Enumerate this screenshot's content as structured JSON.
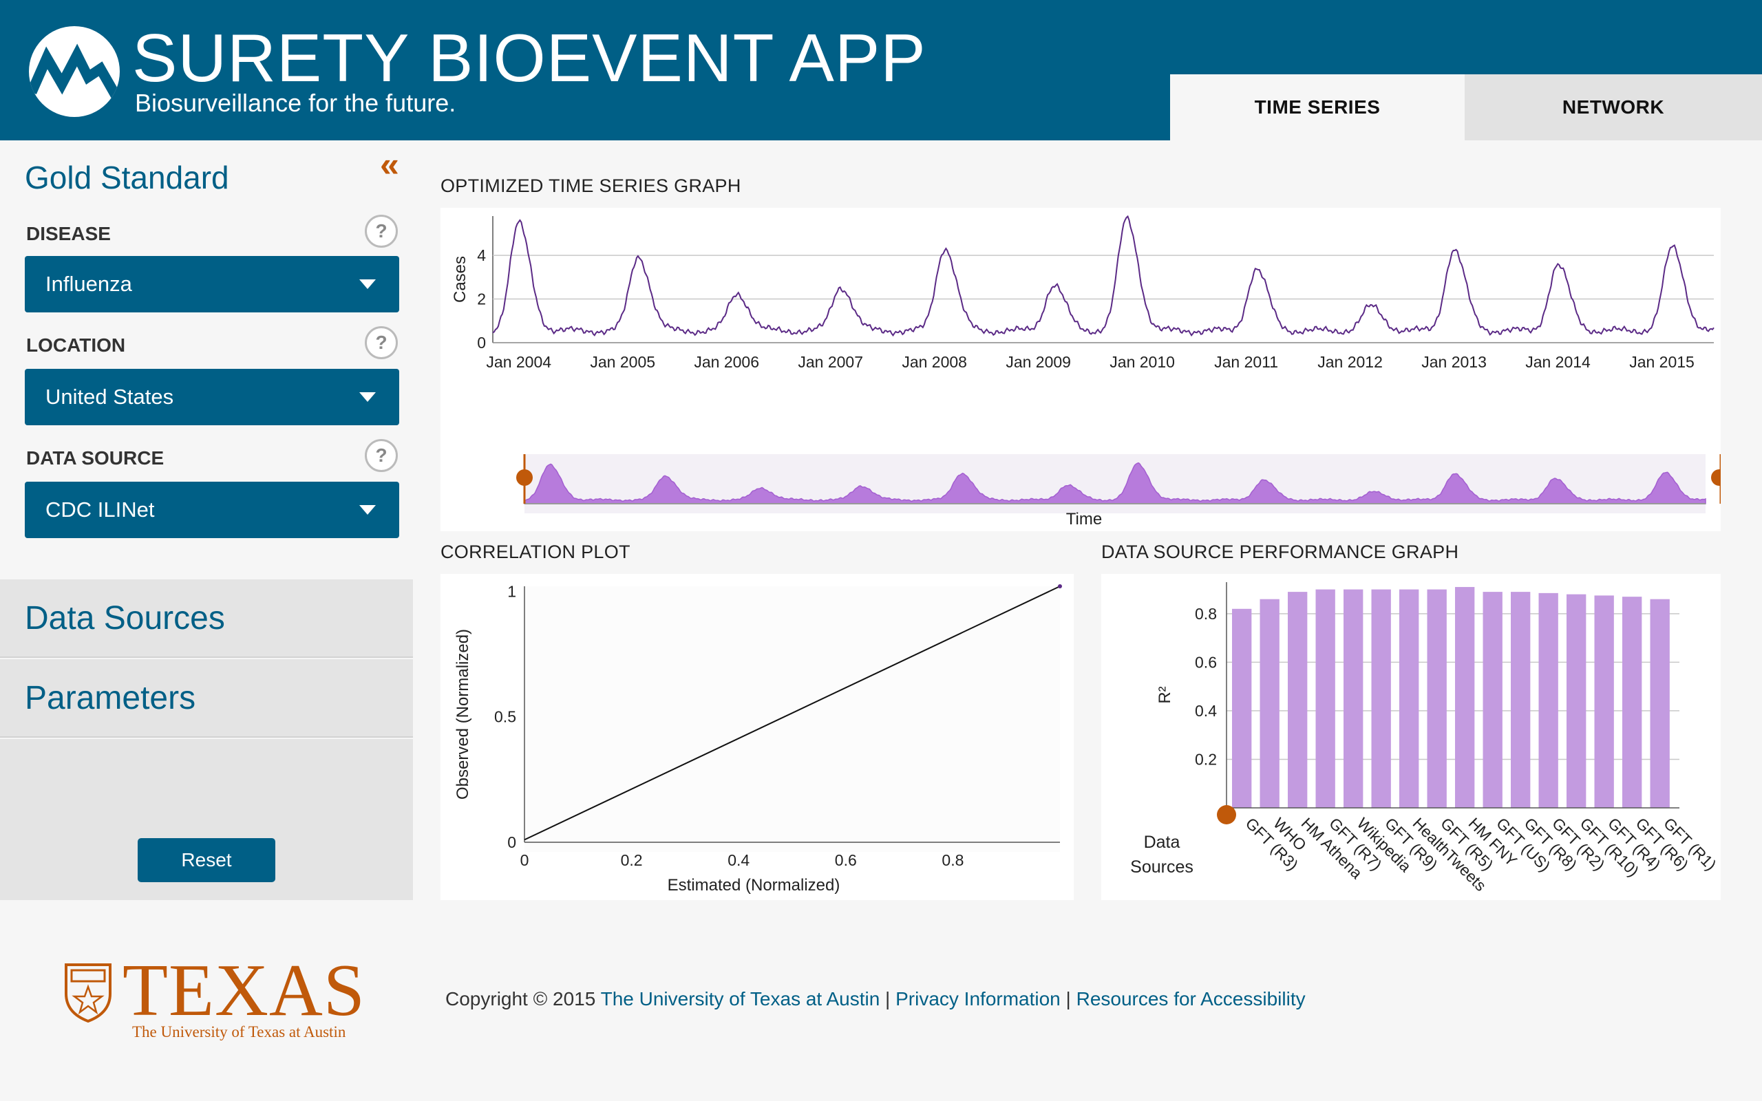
{
  "header": {
    "title": "SURETY BIOEVENT APP",
    "subtitle": "Biosurveillance for the future.",
    "tabs": [
      {
        "label": "TIME SERIES",
        "active": true
      },
      {
        "label": "NETWORK",
        "active": false
      }
    ]
  },
  "colors": {
    "brand": "#005f86",
    "accent": "#c0590a",
    "series": "#5b2a86",
    "area": "#b77bdc",
    "bar": "#c39be0"
  },
  "sidebar": {
    "collapse_icon": "double-chevron-left-icon",
    "section_title": "Gold Standard",
    "fields": [
      {
        "label": "DISEASE",
        "value": "Influenza",
        "help": "?"
      },
      {
        "label": "LOCATION",
        "value": "United States",
        "help": "?"
      },
      {
        "label": "DATA SOURCE",
        "value": "CDC ILINet",
        "help": "?"
      }
    ],
    "sections": [
      "Data Sources",
      "Parameters"
    ],
    "reset_label": "Reset"
  },
  "time_series": {
    "title": "OPTIMIZED TIME SERIES GRAPH",
    "chart_data": {
      "type": "line",
      "ylabel": "Cases",
      "xlabel": "Time",
      "yticks": [
        0,
        2,
        4
      ],
      "xticks": [
        "Jan 2004",
        "Jan 2005",
        "Jan 2006",
        "Jan 2007",
        "Jan 2008",
        "Jan 2009",
        "Jan 2010",
        "Jan 2011",
        "Jan 2012",
        "Jan 2013",
        "Jan 2014",
        "Jan 2015"
      ],
      "ylim": [
        0,
        5.8
      ],
      "x_range": [
        "2003-10",
        "2015-06"
      ],
      "grid": true,
      "brush": true,
      "peaks": [
        {
          "year": 2004.0,
          "value": 5.5
        },
        {
          "year": 2005.15,
          "value": 4.0
        },
        {
          "year": 2006.1,
          "value": 2.3
        },
        {
          "year": 2007.1,
          "value": 2.6
        },
        {
          "year": 2008.1,
          "value": 4.4
        },
        {
          "year": 2009.15,
          "value": 2.7
        },
        {
          "year": 2009.85,
          "value": 5.7
        },
        {
          "year": 2011.1,
          "value": 3.4
        },
        {
          "year": 2012.2,
          "value": 1.7
        },
        {
          "year": 2013.0,
          "value": 4.3
        },
        {
          "year": 2014.0,
          "value": 3.6
        },
        {
          "year": 2015.1,
          "value": 4.4
        }
      ]
    }
  },
  "correlation": {
    "title": "CORRELATION PLOT",
    "chart_data": {
      "type": "line",
      "xlabel": "Estimated (Normalized)",
      "ylabel": "Observed (Normalized)",
      "xticks": [
        0,
        0.2,
        0.4,
        0.6,
        0.8
      ],
      "yticks": [
        0,
        0.5,
        1
      ],
      "xlim": [
        0,
        1
      ],
      "ylim": [
        0,
        1.02
      ],
      "points": [
        [
          0,
          0.01
        ],
        [
          1,
          1.02
        ]
      ]
    }
  },
  "performance": {
    "title": "DATA SOURCE PERFORMANCE GRAPH",
    "chart_data": {
      "type": "bar",
      "ylabel": "R²",
      "xlabel": "Data Sources",
      "yticks": [
        0.2,
        0.4,
        0.6,
        0.8
      ],
      "ylim": [
        0,
        0.93
      ],
      "grid": true,
      "categories": [
        "GFT (R3)",
        "WHO",
        "HM Athena",
        "GFT (R7)",
        "Wikipedia",
        "GFT (R9)",
        "HealthTweets",
        "GFT (R5)",
        "HM FNY",
        "GFT (US)",
        "GFT (R8)",
        "GFT (R2)",
        "GFT (R10)",
        "GFT (R4)",
        "GFT (R6)",
        "GFT (R1)"
      ],
      "values": [
        0.82,
        0.86,
        0.89,
        0.9,
        0.9,
        0.9,
        0.9,
        0.9,
        0.91,
        0.89,
        0.89,
        0.885,
        0.88,
        0.875,
        0.87,
        0.86
      ]
    }
  },
  "footer": {
    "copyright": "Copyright © 2015",
    "links": [
      "The University of Texas at Austin",
      "Privacy Information",
      "Resources for Accessibility"
    ],
    "separator": "|",
    "logo_word": "TEXAS",
    "logo_sub": "The University of Texas at Austin"
  }
}
